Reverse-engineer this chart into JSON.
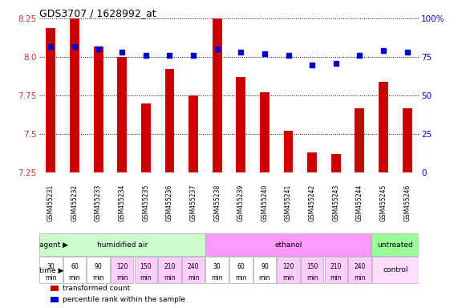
{
  "title": "GDS3707 / 1628992_at",
  "samples": [
    "GSM455231",
    "GSM455232",
    "GSM455233",
    "GSM455234",
    "GSM455235",
    "GSM455236",
    "GSM455237",
    "GSM455238",
    "GSM455239",
    "GSM455240",
    "GSM455241",
    "GSM455242",
    "GSM455243",
    "GSM455244",
    "GSM455245",
    "GSM455246"
  ],
  "bar_values": [
    8.19,
    8.25,
    8.07,
    8.0,
    7.7,
    7.92,
    7.75,
    8.25,
    7.87,
    7.77,
    7.52,
    7.38,
    7.37,
    7.67,
    7.84,
    7.67
  ],
  "percentile_values": [
    82,
    82,
    80,
    78,
    76,
    76,
    76,
    80,
    78,
    77,
    76,
    70,
    71,
    76,
    79,
    78
  ],
  "ymin": 7.25,
  "ymax": 8.25,
  "yticks": [
    7.25,
    7.5,
    7.75,
    8.0,
    8.25
  ],
  "right_yticks": [
    0,
    25,
    50,
    75,
    100
  ],
  "bar_color": "#cc0000",
  "percentile_color": "#0000cc",
  "agent_groups": [
    {
      "label": "humidified air",
      "start": 0,
      "end": 7,
      "color": "#ccffcc"
    },
    {
      "label": "ethanol",
      "start": 7,
      "end": 14,
      "color": "#ff99ff"
    },
    {
      "label": "untreated",
      "start": 14,
      "end": 16,
      "color": "#99ff99"
    }
  ],
  "time_labels_top": [
    "30",
    "60",
    "90",
    "120",
    "150",
    "210",
    "240",
    "30",
    "60",
    "90",
    "120",
    "150",
    "210",
    "240",
    "",
    ""
  ],
  "time_labels_bot": [
    "min",
    "min",
    "min",
    "min",
    "min",
    "min",
    "min",
    "min",
    "min",
    "min",
    "min",
    "min",
    "min",
    "min",
    "",
    ""
  ],
  "time_colors": [
    "#ffffff",
    "#ffffff",
    "#ffffff",
    "#ffccff",
    "#ffccff",
    "#ffccff",
    "#ffccff",
    "#ffffff",
    "#ffffff",
    "#ffffff",
    "#ffccff",
    "#ffccff",
    "#ffccff",
    "#ffccff",
    "",
    ""
  ],
  "legend_items": [
    {
      "color": "#cc0000",
      "label": "transformed count"
    },
    {
      "color": "#0000cc",
      "label": "percentile rank within the sample"
    }
  ]
}
